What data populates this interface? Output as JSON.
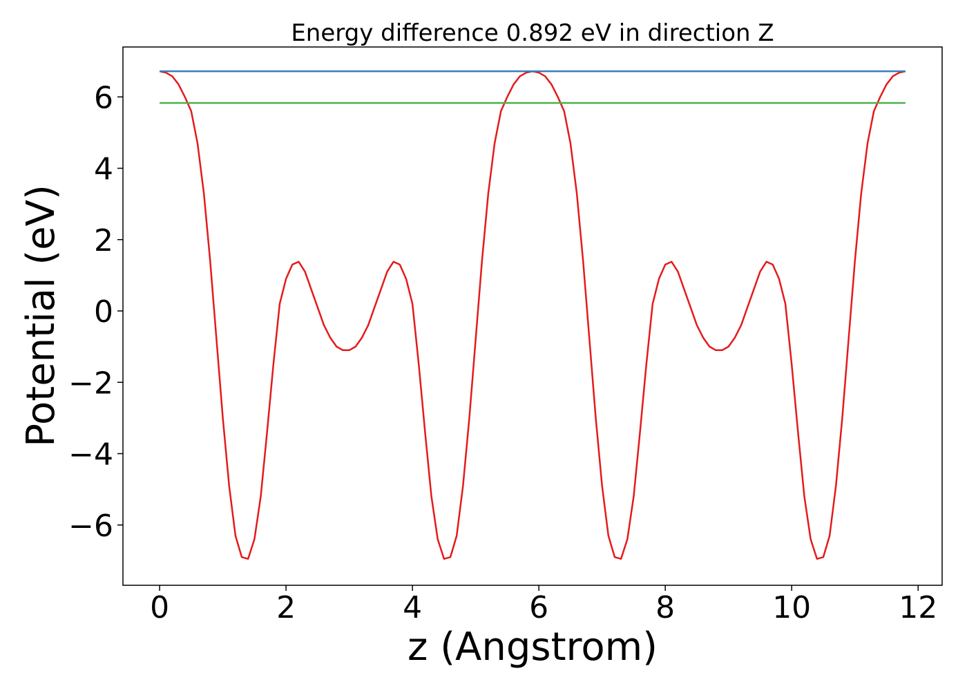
{
  "chart_data": {
    "type": "line",
    "title": "Energy difference 0.892 eV in direction Z",
    "xlabel": "z (Angstrom)",
    "ylabel": "Potential (eV)",
    "xlim": [
      -0.58,
      12.38
    ],
    "ylim": [
      -7.69,
      7.4
    ],
    "xticks": [
      0,
      2,
      4,
      6,
      8,
      10,
      12
    ],
    "yticks": [
      {
        "value": -6,
        "label": "−6"
      },
      {
        "value": -4,
        "label": "−4"
      },
      {
        "value": -2,
        "label": "−2"
      },
      0,
      2,
      4,
      6
    ],
    "series": [
      {
        "color": "#e41a1c",
        "x": [
          0,
          0.1,
          0.2,
          0.3,
          0.4,
          0.5,
          0.6,
          0.7,
          0.8,
          0.9,
          1.0,
          1.1,
          1.2,
          1.3,
          1.4,
          1.5,
          1.6,
          1.7,
          1.8,
          1.9,
          2.0,
          2.1,
          2.2,
          2.3,
          2.4,
          2.5,
          2.6,
          2.7,
          2.8,
          2.9,
          3.0,
          3.1,
          3.2,
          3.3,
          3.4,
          3.5,
          3.6,
          3.7,
          3.8,
          3.9,
          4.0,
          4.1,
          4.2,
          4.3,
          4.4,
          4.5,
          4.6,
          4.7,
          4.8,
          4.9,
          5.0,
          5.1,
          5.2,
          5.3,
          5.4,
          5.5,
          5.6,
          5.7,
          5.8,
          5.9,
          6.0,
          6.1,
          6.2,
          6.3,
          6.4,
          6.5,
          6.6,
          6.7,
          6.8,
          6.9,
          7.0,
          7.1,
          7.2,
          7.3,
          7.4,
          7.5,
          7.6,
          7.7,
          7.8,
          7.9,
          8.0,
          8.1,
          8.2,
          8.3,
          8.4,
          8.5,
          8.6,
          8.7,
          8.8,
          8.9,
          9.0,
          9.1,
          9.2,
          9.3,
          9.4,
          9.5,
          9.6,
          9.7,
          9.8,
          9.9,
          10.0,
          10.1,
          10.2,
          10.3,
          10.4,
          10.5,
          10.6,
          10.7,
          10.8,
          10.9,
          11.0,
          11.1,
          11.2,
          11.3,
          11.4,
          11.5,
          11.6,
          11.7,
          11.8
        ],
        "values": [
          6.72,
          6.68,
          6.58,
          6.35,
          6.0,
          5.6,
          4.7,
          3.3,
          1.4,
          -0.8,
          -3.0,
          -4.9,
          -6.3,
          -6.9,
          -6.95,
          -6.4,
          -5.2,
          -3.4,
          -1.5,
          0.2,
          0.9,
          1.3,
          1.38,
          1.1,
          0.6,
          0.1,
          -0.4,
          -0.75,
          -1.0,
          -1.1,
          -1.1,
          -1.0,
          -0.75,
          -0.4,
          0.1,
          0.6,
          1.1,
          1.38,
          1.3,
          0.9,
          0.2,
          -1.5,
          -3.4,
          -5.2,
          -6.4,
          -6.95,
          -6.9,
          -6.3,
          -4.9,
          -3.0,
          -0.8,
          1.4,
          3.3,
          4.7,
          5.6,
          6.0,
          6.35,
          6.58,
          6.68,
          6.72,
          6.68,
          6.58,
          6.35,
          6.0,
          5.6,
          4.7,
          3.3,
          1.4,
          -0.8,
          -3.0,
          -4.9,
          -6.3,
          -6.9,
          -6.95,
          -6.4,
          -5.2,
          -3.4,
          -1.5,
          0.2,
          0.9,
          1.3,
          1.38,
          1.1,
          0.6,
          0.1,
          -0.4,
          -0.75,
          -1.0,
          -1.1,
          -1.1,
          -1.0,
          -0.75,
          -0.4,
          0.1,
          0.6,
          1.1,
          1.38,
          1.3,
          0.9,
          0.2,
          -1.5,
          -3.4,
          -5.2,
          -6.4,
          -6.95,
          -6.9,
          -6.3,
          -4.9,
          -3.0,
          -0.8,
          1.4,
          3.3,
          4.7,
          5.6,
          6.0,
          6.35,
          6.58,
          6.68,
          6.72
        ]
      },
      {
        "color": "#377eb8",
        "x": [
          0,
          11.8
        ],
        "values": [
          6.72,
          6.72
        ]
      },
      {
        "color": "#4daf4a",
        "x": [
          0,
          11.8
        ],
        "values": [
          5.83,
          5.83
        ]
      }
    ]
  }
}
